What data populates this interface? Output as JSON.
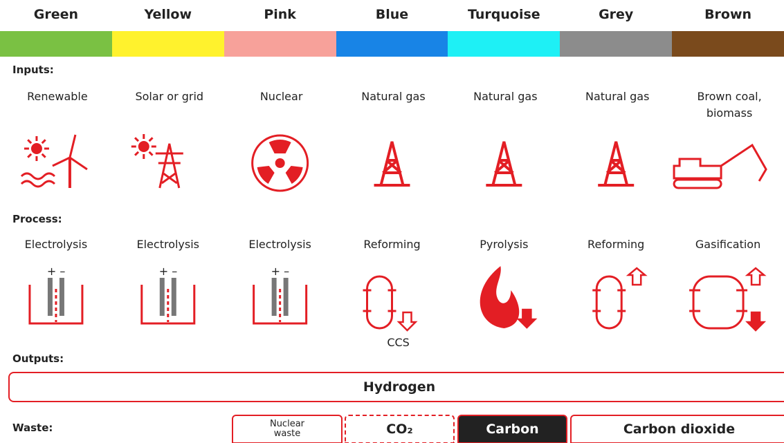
{
  "columns": [
    {
      "name": "Green",
      "color": "#7ac143",
      "input": "Renewable",
      "process": "Electrolysis"
    },
    {
      "name": "Yellow",
      "color": "#fff22d",
      "input": "Solar or grid",
      "process": "Electrolysis"
    },
    {
      "name": "Pink",
      "color": "#f7a19a",
      "input": "Nuclear",
      "process": "Electrolysis"
    },
    {
      "name": "Blue",
      "color": "#1884e6",
      "input": "Natural gas",
      "process": "Reforming",
      "note": "CCS"
    },
    {
      "name": "Turquoise",
      "color": "#1ef0f5",
      "input": "Natural gas",
      "process": "Pyrolysis"
    },
    {
      "name": "Grey",
      "color": "#8c8c8c",
      "input": "Natural gas",
      "process": "Reforming"
    },
    {
      "name": "Brown",
      "color": "#7a4a1c",
      "input": "Brown coal, biomass",
      "process": "Gasification"
    }
  ],
  "sections": {
    "inputs": "Inputs:",
    "process": "Process:",
    "outputs": "Outputs:",
    "waste": "Waste:"
  },
  "output": "Hydrogen",
  "waste": [
    {
      "label": "Nuclear waste",
      "style": "outline"
    },
    {
      "label": "CO₂",
      "style": "dashed"
    },
    {
      "label": "Carbon",
      "style": "filled"
    },
    {
      "label": "Carbon dioxide",
      "style": "outline"
    }
  ]
}
